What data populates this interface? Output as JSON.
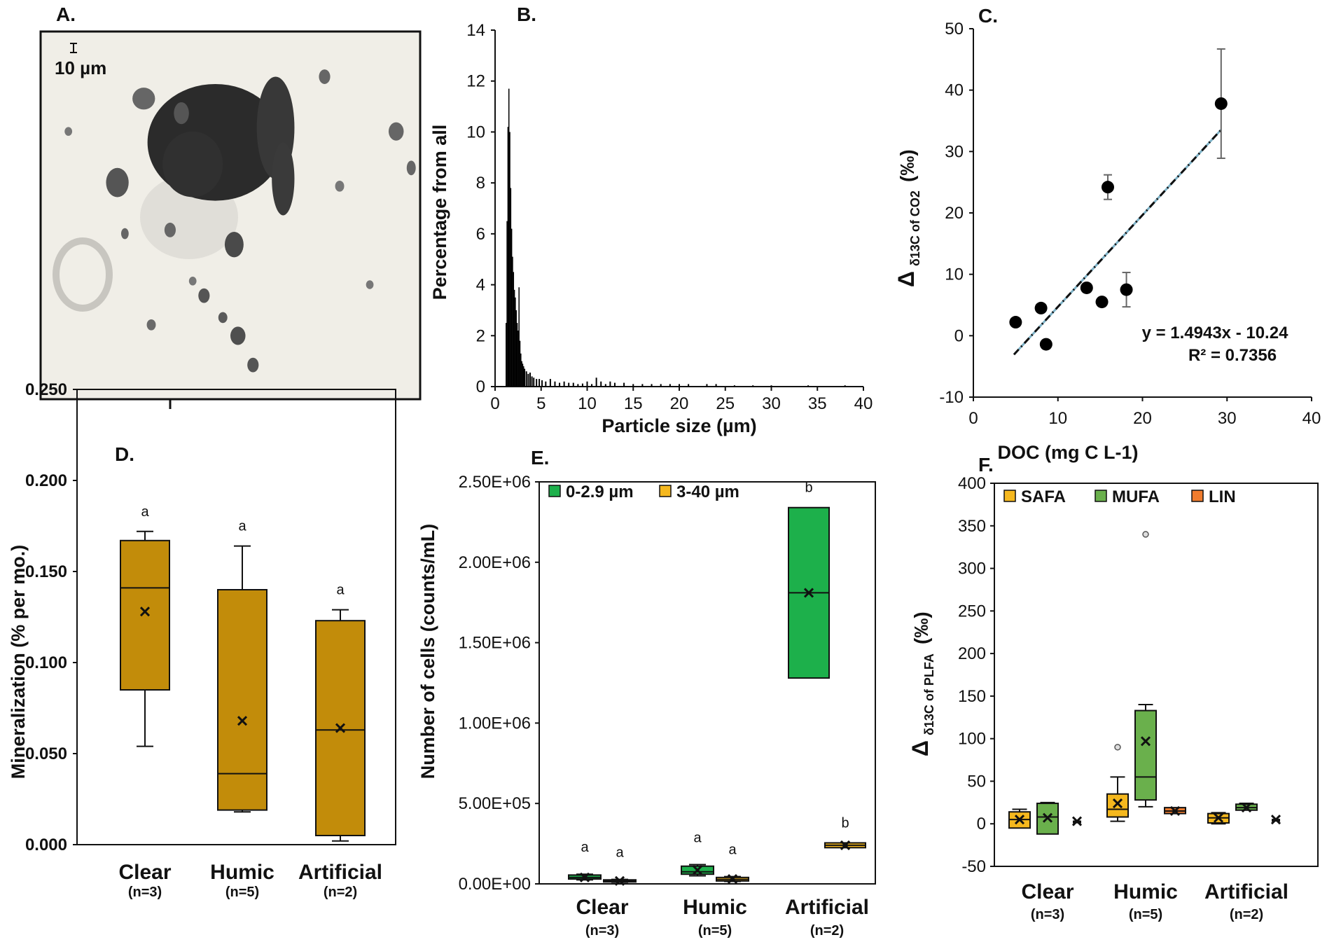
{
  "chart_data": [
    {
      "panel": "A.",
      "type": "image",
      "scale_bar": "10 µm",
      "blobs": [
        [
          0.46,
          0.3,
          0.18,
          0.16,
          "#2b2b2b"
        ],
        [
          0.4,
          0.36,
          0.08,
          0.09,
          "#303030"
        ],
        [
          0.62,
          0.26,
          0.05,
          0.14,
          "#383838"
        ],
        [
          0.64,
          0.4,
          0.03,
          0.1,
          "#3a3a3a"
        ],
        [
          0.2,
          0.41,
          0.03,
          0.04,
          "#555"
        ],
        [
          0.27,
          0.18,
          0.03,
          0.03,
          "#666"
        ],
        [
          0.37,
          0.22,
          0.02,
          0.03,
          "#555"
        ],
        [
          0.51,
          0.58,
          0.025,
          0.035,
          "#4a4a4a"
        ],
        [
          0.43,
          0.72,
          0.015,
          0.02,
          "#555"
        ],
        [
          0.48,
          0.78,
          0.012,
          0.015,
          "#5a5a5a"
        ],
        [
          0.52,
          0.83,
          0.02,
          0.025,
          "#4f4f4f"
        ],
        [
          0.56,
          0.91,
          0.015,
          0.02,
          "#555"
        ],
        [
          0.34,
          0.54,
          0.015,
          0.02,
          "#666"
        ],
        [
          0.22,
          0.55,
          0.01,
          0.015,
          "#666"
        ],
        [
          0.75,
          0.12,
          0.015,
          0.02,
          "#666"
        ],
        [
          0.94,
          0.27,
          0.02,
          0.025,
          "#666"
        ],
        [
          0.98,
          0.37,
          0.012,
          0.02,
          "#666"
        ],
        [
          0.29,
          0.8,
          0.012,
          0.015,
          "#6a6a6a"
        ],
        [
          0.79,
          0.42,
          0.012,
          0.015,
          "#777"
        ],
        [
          0.87,
          0.69,
          0.01,
          0.012,
          "#777"
        ],
        [
          0.4,
          0.68,
          0.01,
          0.012,
          "#777"
        ],
        [
          0.07,
          0.27,
          0.01,
          0.012,
          "#777"
        ]
      ]
    },
    {
      "panel": "B.",
      "type": "bar",
      "xlabel": "Particle size (µm)",
      "ylabel": "Percentage from all",
      "xlim": [
        0,
        40
      ],
      "ylim": [
        0,
        14
      ],
      "xticks": [
        0,
        5,
        10,
        15,
        20,
        25,
        30,
        35,
        40
      ],
      "yticks": [
        0,
        2,
        4,
        6,
        8,
        10,
        12,
        14
      ],
      "x": [
        1.2,
        1.3,
        1.4,
        1.5,
        1.6,
        1.7,
        1.8,
        1.9,
        2.0,
        2.1,
        2.2,
        2.3,
        2.4,
        2.5,
        2.6,
        2.7,
        2.8,
        2.9,
        3.0,
        3.1,
        3.2,
        3.4,
        3.6,
        3.8,
        4.0,
        4.2,
        4.5,
        4.8,
        5.1,
        5.5,
        6.0,
        6.5,
        7.0,
        7.5,
        8.0,
        8.5,
        9.0,
        9.5,
        10.0,
        10.5,
        11.0,
        11.5,
        12.0,
        12.5,
        13.0,
        14.0,
        15.0,
        16.0,
        17.0,
        18.0,
        19.0,
        20.0,
        21.0,
        23.0,
        24.0,
        26.0,
        28.0,
        30.0,
        34.0,
        38.0
      ],
      "values": [
        2.5,
        6.5,
        10.2,
        11.7,
        10.0,
        7.8,
        6.2,
        5.1,
        4.5,
        3.8,
        3.5,
        3.0,
        2.5,
        2.2,
        3.9,
        1.8,
        1.3,
        1.0,
        0.9,
        0.8,
        0.7,
        0.6,
        0.5,
        0.55,
        0.4,
        0.35,
        0.3,
        0.3,
        0.25,
        0.2,
        0.3,
        0.2,
        0.15,
        0.2,
        0.15,
        0.15,
        0.1,
        0.12,
        0.2,
        0.1,
        0.35,
        0.2,
        0.1,
        0.2,
        0.15,
        0.15,
        0.1,
        0.1,
        0.1,
        0.1,
        0.1,
        0.1,
        0.1,
        0.1,
        0.1,
        0.05,
        0.05,
        0.05,
        0.05,
        0.05
      ]
    },
    {
      "panel": "C.",
      "type": "scatter",
      "xlabel": "DOC (mg C L-1)",
      "ylabel_main": "Δ",
      "ylabel_sub": "δ13C of CO2",
      "ylabel_unit": "(‰)",
      "xlim": [
        0,
        40
      ],
      "ylim": [
        -10,
        50
      ],
      "xticks": [
        0,
        10,
        20,
        30,
        40
      ],
      "yticks": [
        -10,
        0,
        10,
        20,
        30,
        40,
        50
      ],
      "points": [
        {
          "x": 5.0,
          "y": 2.2,
          "err": 0
        },
        {
          "x": 8.0,
          "y": 4.5,
          "err": 0
        },
        {
          "x": 8.6,
          "y": -1.4,
          "err": 0
        },
        {
          "x": 13.4,
          "y": 7.8,
          "err": 0
        },
        {
          "x": 15.2,
          "y": 5.5,
          "err": 0
        },
        {
          "x": 15.9,
          "y": 24.2,
          "err": 2.0
        },
        {
          "x": 18.1,
          "y": 7.5,
          "err": 2.8
        },
        {
          "x": 29.3,
          "y": 37.8,
          "err": 8.9
        }
      ],
      "fit": {
        "slope": 1.4943,
        "intercept": -10.24,
        "x_range": [
          4.8,
          29.3
        ]
      },
      "equation": "y = 1.4943x - 10.24",
      "r2": "R² = 0.7356"
    },
    {
      "panel": "D.",
      "type": "box",
      "ylabel": "Mineralization  (% per mo.)",
      "ylim": [
        0,
        0.25
      ],
      "yticks": [
        "0.000",
        "0.050",
        "0.100",
        "0.150",
        "0.200",
        "0.250"
      ],
      "categories": [
        "Clear",
        "Humic",
        "Artificial"
      ],
      "ns": [
        "(n=3)",
        "(n=5)",
        "(n=2)"
      ],
      "color": "#c28c0a",
      "boxes": [
        {
          "min": 0.054,
          "q1": 0.085,
          "median": 0.141,
          "q3": 0.167,
          "max": 0.172,
          "mean": 0.128,
          "sig": "a"
        },
        {
          "min": 0.018,
          "q1": 0.019,
          "median": 0.039,
          "q3": 0.14,
          "max": 0.164,
          "mean": 0.068,
          "sig": "a"
        },
        {
          "min": 0.002,
          "q1": 0.005,
          "median": 0.063,
          "q3": 0.123,
          "max": 0.129,
          "mean": 0.064,
          "sig": "a"
        }
      ]
    },
    {
      "panel": "E.",
      "type": "box",
      "ylabel": "Number of cells (counts/mL)",
      "ylim": [
        0,
        2500000
      ],
      "yticks": [
        "0.00E+00",
        "5.00E+05",
        "1.00E+06",
        "1.50E+06",
        "2.00E+06",
        "2.50E+06"
      ],
      "categories": [
        "Clear",
        "Humic",
        "Artificial"
      ],
      "ns": [
        "(n=3)",
        "(n=5)",
        "(n=2)"
      ],
      "legend": [
        {
          "name": "0-2.9 µm",
          "color": "#1db04b"
        },
        {
          "name": "3-40 µm",
          "color": "#f5b81e"
        }
      ],
      "series": [
        {
          "name": "0-2.9 µm",
          "color": "#1db04b",
          "boxes": [
            {
              "min": 25000,
              "q1": 30000,
              "median": 40000,
              "q3": 55000,
              "max": 60000,
              "mean": 40000,
              "sig": "a"
            },
            {
              "min": 50000,
              "q1": 60000,
              "median": 75000,
              "q3": 110000,
              "max": 120000,
              "mean": 85000,
              "sig": "a"
            },
            {
              "min": 1280000,
              "q1": 1280000,
              "median": 1810000,
              "q3": 2340000,
              "max": 2340000,
              "mean": 1810000,
              "sig": "b"
            }
          ]
        },
        {
          "name": "3-40 µm",
          "color": "#f5b81e",
          "boxes": [
            {
              "min": 10000,
              "q1": 12000,
              "median": 18000,
              "q3": 25000,
              "max": 28000,
              "mean": 18000,
              "sig": "a"
            },
            {
              "min": 15000,
              "q1": 18000,
              "median": 28000,
              "q3": 40000,
              "max": 45000,
              "mean": 30000,
              "sig": "a"
            },
            {
              "min": 225000,
              "q1": 225000,
              "median": 240000,
              "q3": 255000,
              "max": 255000,
              "mean": 240000,
              "sig": "b"
            }
          ]
        }
      ]
    },
    {
      "panel": "F.",
      "type": "box",
      "ylabel_main": "Δ",
      "ylabel_sub": "δ13C of PLFA",
      "ylabel_unit": "(‰)",
      "ylim": [
        -50,
        400
      ],
      "yticks": [
        -50,
        0,
        50,
        100,
        150,
        200,
        250,
        300,
        350,
        400
      ],
      "categories": [
        "Clear",
        "Humic",
        "Artificial"
      ],
      "ns": [
        "(n=3)",
        "(n=5)",
        "(n=2)"
      ],
      "legend": [
        {
          "name": "SAFA",
          "color": "#f5b81e"
        },
        {
          "name": "MUFA",
          "color": "#6ab04c"
        },
        {
          "name": "LIN",
          "color": "#f07c2e"
        }
      ],
      "series": [
        {
          "name": "SAFA",
          "color": "#f5b81e",
          "boxes": [
            {
              "min": -5,
              "q1": -5,
              "median": 5,
              "q3": 14,
              "max": 17,
              "mean": 5,
              "outliers": []
            },
            {
              "min": 3,
              "q1": 8,
              "median": 17,
              "q3": 35,
              "max": 55,
              "mean": 24,
              "outliers": [
                90
              ]
            },
            {
              "min": 0,
              "q1": 1,
              "median": 7,
              "q3": 12,
              "max": 13,
              "mean": 7,
              "outliers": []
            }
          ]
        },
        {
          "name": "MUFA",
          "color": "#6ab04c",
          "boxes": [
            {
              "min": -12,
              "q1": -12,
              "median": 8,
              "q3": 24,
              "max": 25,
              "mean": 7,
              "outliers": []
            },
            {
              "min": 20,
              "q1": 28,
              "median": 55,
              "q3": 133,
              "max": 140,
              "mean": 97,
              "outliers": [
                340
              ]
            },
            {
              "min": 16,
              "q1": 16,
              "median": 19,
              "q3": 23,
              "max": 24,
              "mean": 19,
              "outliers": []
            }
          ]
        },
        {
          "name": "LIN",
          "color": "#f07c2e",
          "boxes": [
            {
              "min": 3,
              "q1": 3,
              "median": 3,
              "q3": 3,
              "max": 3,
              "mean": 3,
              "outliers": []
            },
            {
              "min": 12,
              "q1": 12,
              "median": 15,
              "q3": 19,
              "max": 19,
              "mean": 15,
              "outliers": []
            },
            {
              "min": 5,
              "q1": 5,
              "median": 5,
              "q3": 5,
              "max": 5,
              "mean": 5,
              "outliers": []
            }
          ]
        }
      ]
    }
  ]
}
